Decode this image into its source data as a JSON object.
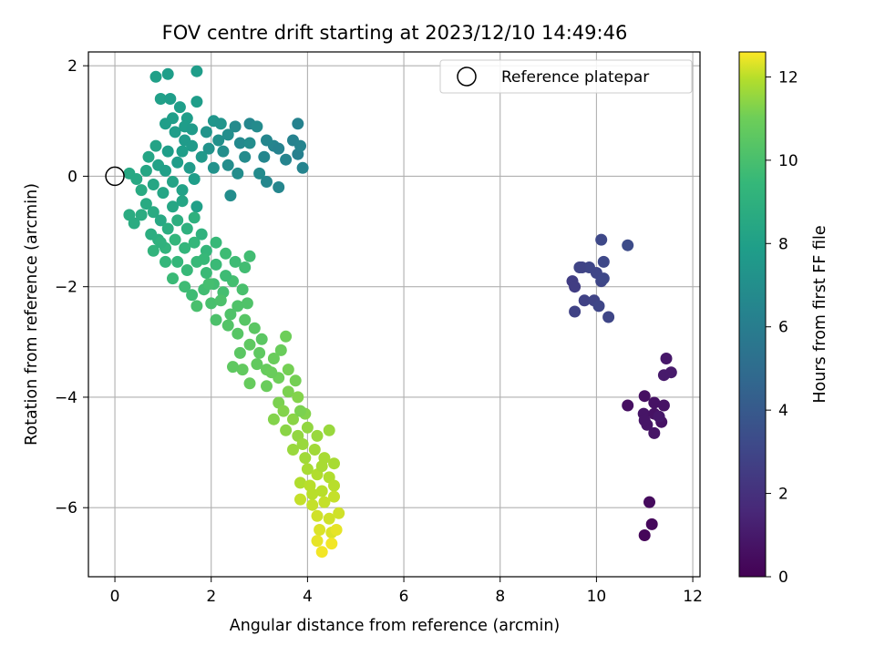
{
  "chart_data": {
    "type": "scatter",
    "title": "FOV centre drift starting at 2023/12/10 14:49:46",
    "xlabel": "Angular distance from reference (arcmin)",
    "ylabel": "Rotation from reference (arcmin)",
    "xlim": [
      -0.55,
      12.15
    ],
    "ylim": [
      -7.25,
      2.25
    ],
    "xticks": [
      0,
      2,
      4,
      6,
      8,
      10,
      12
    ],
    "yticks": [
      -6,
      -4,
      -2,
      0,
      2
    ],
    "grid": true,
    "legend": {
      "position": "top-right",
      "entries": [
        "Reference platepar"
      ]
    },
    "reference_point": {
      "x": 0,
      "y": 0
    },
    "colorbar": {
      "label": "Hours from first FF file",
      "range": [
        0,
        12.6
      ],
      "ticks": [
        0,
        2,
        4,
        6,
        8,
        10,
        12
      ],
      "colormap": "viridis"
    },
    "points": [
      {
        "x": 11.0,
        "y": -6.5,
        "c": 0.2
      },
      {
        "x": 11.15,
        "y": -6.3,
        "c": 0.3
      },
      {
        "x": 11.1,
        "y": -5.9,
        "c": 0.4
      },
      {
        "x": 10.65,
        "y": -4.15,
        "c": 0.6
      },
      {
        "x": 11.0,
        "y": -3.98,
        "c": 0.6
      },
      {
        "x": 11.2,
        "y": -4.1,
        "c": 0.7
      },
      {
        "x": 11.4,
        "y": -4.15,
        "c": 0.7
      },
      {
        "x": 10.98,
        "y": -4.3,
        "c": 0.8
      },
      {
        "x": 11.2,
        "y": -4.3,
        "c": 0.7
      },
      {
        "x": 11.35,
        "y": -4.45,
        "c": 0.7
      },
      {
        "x": 11.05,
        "y": -4.5,
        "c": 0.8
      },
      {
        "x": 11.2,
        "y": -4.65,
        "c": 0.8
      },
      {
        "x": 11.3,
        "y": -4.35,
        "c": 0.9
      },
      {
        "x": 11.45,
        "y": -3.3,
        "c": 0.9
      },
      {
        "x": 11.4,
        "y": -3.6,
        "c": 1.0
      },
      {
        "x": 11.55,
        "y": -3.55,
        "c": 1.0
      },
      {
        "x": 11.0,
        "y": -4.42,
        "c": 0.8
      },
      {
        "x": 9.5,
        "y": -1.9,
        "c": 2.6
      },
      {
        "x": 9.55,
        "y": -2.0,
        "c": 2.6
      },
      {
        "x": 9.55,
        "y": -2.45,
        "c": 2.8
      },
      {
        "x": 9.7,
        "y": -1.65,
        "c": 2.9
      },
      {
        "x": 9.75,
        "y": -2.25,
        "c": 2.8
      },
      {
        "x": 9.85,
        "y": -1.65,
        "c": 3.0
      },
      {
        "x": 9.95,
        "y": -2.25,
        "c": 2.9
      },
      {
        "x": 10.0,
        "y": -1.75,
        "c": 3.0
      },
      {
        "x": 10.1,
        "y": -1.9,
        "c": 3.0
      },
      {
        "x": 10.15,
        "y": -1.55,
        "c": 3.1
      },
      {
        "x": 10.05,
        "y": -2.35,
        "c": 3.0
      },
      {
        "x": 10.25,
        "y": -2.55,
        "c": 3.0
      },
      {
        "x": 10.1,
        "y": -1.15,
        "c": 3.1
      },
      {
        "x": 10.65,
        "y": -1.25,
        "c": 3.3
      },
      {
        "x": 9.65,
        "y": -1.65,
        "c": 2.9
      },
      {
        "x": 10.15,
        "y": -1.85,
        "c": 3.1
      },
      {
        "x": 2.8,
        "y": 0.95,
        "c": 6.6
      },
      {
        "x": 3.1,
        "y": 0.35,
        "c": 6.5
      },
      {
        "x": 3.3,
        "y": 0.55,
        "c": 6.4
      },
      {
        "x": 3.15,
        "y": 0.65,
        "c": 6.5
      },
      {
        "x": 3.4,
        "y": 0.5,
        "c": 6.3
      },
      {
        "x": 3.55,
        "y": 0.3,
        "c": 6.4
      },
      {
        "x": 3.7,
        "y": 0.65,
        "c": 6.3
      },
      {
        "x": 3.8,
        "y": 0.4,
        "c": 6.2
      },
      {
        "x": 3.85,
        "y": 0.55,
        "c": 6.4
      },
      {
        "x": 3.8,
        "y": 0.95,
        "c": 6.3
      },
      {
        "x": 3.9,
        "y": 0.15,
        "c": 6.4
      },
      {
        "x": 3.4,
        "y": -0.2,
        "c": 6.5
      },
      {
        "x": 3.15,
        "y": -0.1,
        "c": 6.6
      },
      {
        "x": 3.0,
        "y": 0.05,
        "c": 6.8
      },
      {
        "x": 2.6,
        "y": 0.6,
        "c": 6.7
      },
      {
        "x": 2.7,
        "y": 0.35,
        "c": 6.8
      },
      {
        "x": 2.5,
        "y": 0.9,
        "c": 6.8
      },
      {
        "x": 2.4,
        "y": -0.35,
        "c": 6.9
      },
      {
        "x": 2.35,
        "y": 0.2,
        "c": 6.9
      },
      {
        "x": 2.55,
        "y": 0.05,
        "c": 6.9
      },
      {
        "x": 2.25,
        "y": 0.45,
        "c": 7.0
      },
      {
        "x": 2.15,
        "y": 0.65,
        "c": 7.1
      },
      {
        "x": 2.05,
        "y": 0.15,
        "c": 7.2
      },
      {
        "x": 1.95,
        "y": 0.5,
        "c": 7.2
      },
      {
        "x": 2.05,
        "y": 1.0,
        "c": 7.4
      },
      {
        "x": 2.2,
        "y": 0.95,
        "c": 7.3
      },
      {
        "x": 1.9,
        "y": 0.8,
        "c": 7.3
      },
      {
        "x": 2.8,
        "y": 0.6,
        "c": 6.9
      },
      {
        "x": 2.95,
        "y": 0.9,
        "c": 6.8
      },
      {
        "x": 2.35,
        "y": 0.75,
        "c": 7.0
      },
      {
        "x": 1.7,
        "y": 1.9,
        "c": 7.8
      },
      {
        "x": 1.1,
        "y": 1.85,
        "c": 7.9
      },
      {
        "x": 0.85,
        "y": 1.8,
        "c": 8.0
      },
      {
        "x": 0.95,
        "y": 1.4,
        "c": 8.0
      },
      {
        "x": 1.15,
        "y": 1.4,
        "c": 7.9
      },
      {
        "x": 1.35,
        "y": 1.25,
        "c": 7.9
      },
      {
        "x": 1.7,
        "y": 1.35,
        "c": 7.8
      },
      {
        "x": 1.5,
        "y": 1.05,
        "c": 7.8
      },
      {
        "x": 1.05,
        "y": 0.95,
        "c": 7.9
      },
      {
        "x": 1.25,
        "y": 0.8,
        "c": 7.8
      },
      {
        "x": 1.45,
        "y": 0.65,
        "c": 7.7
      },
      {
        "x": 1.6,
        "y": 0.55,
        "c": 7.7
      },
      {
        "x": 1.8,
        "y": 0.35,
        "c": 7.6
      },
      {
        "x": 1.1,
        "y": 0.45,
        "c": 7.9
      },
      {
        "x": 1.3,
        "y": 0.25,
        "c": 7.8
      },
      {
        "x": 1.55,
        "y": 0.15,
        "c": 7.7
      },
      {
        "x": 0.9,
        "y": 0.2,
        "c": 8.1
      },
      {
        "x": 1.05,
        "y": 0.1,
        "c": 8.0
      },
      {
        "x": 0.7,
        "y": 0.35,
        "c": 8.3
      },
      {
        "x": 0.3,
        "y": 0.05,
        "c": 8.5
      },
      {
        "x": 0.45,
        "y": -0.05,
        "c": 8.5
      },
      {
        "x": 0.55,
        "y": -0.25,
        "c": 8.6
      },
      {
        "x": 0.65,
        "y": 0.1,
        "c": 8.4
      },
      {
        "x": 0.8,
        "y": -0.15,
        "c": 8.4
      },
      {
        "x": 1.0,
        "y": -0.3,
        "c": 8.3
      },
      {
        "x": 1.2,
        "y": -0.1,
        "c": 8.2
      },
      {
        "x": 1.4,
        "y": -0.25,
        "c": 8.1
      },
      {
        "x": 1.65,
        "y": -0.05,
        "c": 7.9
      },
      {
        "x": 0.85,
        "y": 0.55,
        "c": 8.2
      },
      {
        "x": 1.4,
        "y": 0.45,
        "c": 7.9
      },
      {
        "x": 0.3,
        "y": -0.7,
        "c": 8.7
      },
      {
        "x": 0.4,
        "y": -0.85,
        "c": 8.7
      },
      {
        "x": 0.55,
        "y": -0.7,
        "c": 8.7
      },
      {
        "x": 0.65,
        "y": -0.5,
        "c": 8.6
      },
      {
        "x": 0.8,
        "y": -0.65,
        "c": 8.6
      },
      {
        "x": 0.95,
        "y": -0.8,
        "c": 8.5
      },
      {
        "x": 1.2,
        "y": -0.55,
        "c": 8.4
      },
      {
        "x": 1.4,
        "y": -0.45,
        "c": 8.3
      },
      {
        "x": 1.7,
        "y": -0.55,
        "c": 8.0
      },
      {
        "x": 1.45,
        "y": 0.9,
        "c": 7.8
      },
      {
        "x": 1.2,
        "y": 1.05,
        "c": 7.9
      },
      {
        "x": 1.6,
        "y": 0.85,
        "c": 7.7
      },
      {
        "x": 0.75,
        "y": -1.05,
        "c": 8.8
      },
      {
        "x": 0.9,
        "y": -1.15,
        "c": 8.9
      },
      {
        "x": 1.1,
        "y": -0.95,
        "c": 8.8
      },
      {
        "x": 1.3,
        "y": -0.8,
        "c": 8.9
      },
      {
        "x": 1.5,
        "y": -0.95,
        "c": 9.0
      },
      {
        "x": 1.65,
        "y": -0.75,
        "c": 9.0
      },
      {
        "x": 1.8,
        "y": -1.05,
        "c": 9.1
      },
      {
        "x": 0.8,
        "y": -1.35,
        "c": 9.2
      },
      {
        "x": 1.05,
        "y": -1.3,
        "c": 9.2
      },
      {
        "x": 1.25,
        "y": -1.15,
        "c": 9.3
      },
      {
        "x": 1.45,
        "y": -1.3,
        "c": 9.3
      },
      {
        "x": 1.65,
        "y": -1.2,
        "c": 9.4
      },
      {
        "x": 1.9,
        "y": -1.35,
        "c": 9.4
      },
      {
        "x": 2.1,
        "y": -1.2,
        "c": 9.5
      },
      {
        "x": 1.3,
        "y": -1.55,
        "c": 9.4
      },
      {
        "x": 1.5,
        "y": -1.7,
        "c": 9.5
      },
      {
        "x": 1.7,
        "y": -1.55,
        "c": 9.5
      },
      {
        "x": 1.9,
        "y": -1.75,
        "c": 9.6
      },
      {
        "x": 2.1,
        "y": -1.6,
        "c": 9.6
      },
      {
        "x": 2.3,
        "y": -1.4,
        "c": 9.7
      },
      {
        "x": 2.5,
        "y": -1.55,
        "c": 9.7
      },
      {
        "x": 2.8,
        "y": -1.45,
        "c": 9.8
      },
      {
        "x": 2.7,
        "y": -1.65,
        "c": 9.8
      },
      {
        "x": 1.45,
        "y": -2.0,
        "c": 9.7
      },
      {
        "x": 1.6,
        "y": -2.15,
        "c": 9.7
      },
      {
        "x": 1.85,
        "y": -2.05,
        "c": 9.8
      },
      {
        "x": 2.05,
        "y": -1.95,
        "c": 9.8
      },
      {
        "x": 2.25,
        "y": -2.1,
        "c": 9.9
      },
      {
        "x": 2.45,
        "y": -1.9,
        "c": 9.9
      },
      {
        "x": 2.65,
        "y": -2.05,
        "c": 10.0
      },
      {
        "x": 1.7,
        "y": -2.35,
        "c": 10.0
      },
      {
        "x": 2.0,
        "y": -2.3,
        "c": 10.0
      },
      {
        "x": 2.2,
        "y": -2.25,
        "c": 10.1
      },
      {
        "x": 2.4,
        "y": -2.5,
        "c": 10.2
      },
      {
        "x": 2.55,
        "y": -2.35,
        "c": 10.2
      },
      {
        "x": 2.75,
        "y": -2.3,
        "c": 10.2
      },
      {
        "x": 2.35,
        "y": -2.7,
        "c": 10.3
      },
      {
        "x": 2.55,
        "y": -2.85,
        "c": 10.4
      },
      {
        "x": 2.7,
        "y": -2.6,
        "c": 10.4
      },
      {
        "x": 2.9,
        "y": -2.75,
        "c": 10.5
      },
      {
        "x": 2.6,
        "y": -3.2,
        "c": 10.5
      },
      {
        "x": 2.8,
        "y": -3.05,
        "c": 10.6
      },
      {
        "x": 3.0,
        "y": -3.2,
        "c": 10.6
      },
      {
        "x": 2.65,
        "y": -3.5,
        "c": 10.7
      },
      {
        "x": 2.95,
        "y": -3.4,
        "c": 10.7
      },
      {
        "x": 3.15,
        "y": -3.5,
        "c": 10.8
      },
      {
        "x": 2.8,
        "y": -3.75,
        "c": 10.8
      },
      {
        "x": 3.3,
        "y": -3.3,
        "c": 10.9
      },
      {
        "x": 3.45,
        "y": -3.15,
        "c": 10.9
      },
      {
        "x": 3.55,
        "y": -2.9,
        "c": 11.0
      },
      {
        "x": 3.4,
        "y": -3.65,
        "c": 11.0
      },
      {
        "x": 3.6,
        "y": -3.5,
        "c": 11.1
      },
      {
        "x": 3.75,
        "y": -3.7,
        "c": 11.1
      },
      {
        "x": 3.6,
        "y": -3.9,
        "c": 11.2
      },
      {
        "x": 3.4,
        "y": -4.1,
        "c": 11.2
      },
      {
        "x": 3.8,
        "y": -4.0,
        "c": 11.3
      },
      {
        "x": 3.95,
        "y": -4.3,
        "c": 11.3
      },
      {
        "x": 3.7,
        "y": -4.4,
        "c": 11.4
      },
      {
        "x": 3.55,
        "y": -4.6,
        "c": 11.4
      },
      {
        "x": 3.8,
        "y": -4.7,
        "c": 11.5
      },
      {
        "x": 4.0,
        "y": -4.55,
        "c": 11.5
      },
      {
        "x": 4.2,
        "y": -4.7,
        "c": 11.6
      },
      {
        "x": 4.45,
        "y": -4.6,
        "c": 11.6
      },
      {
        "x": 3.7,
        "y": -4.95,
        "c": 11.6
      },
      {
        "x": 3.95,
        "y": -5.1,
        "c": 11.7
      },
      {
        "x": 4.15,
        "y": -4.95,
        "c": 11.7
      },
      {
        "x": 4.35,
        "y": -5.1,
        "c": 11.8
      },
      {
        "x": 4.55,
        "y": -5.2,
        "c": 11.8
      },
      {
        "x": 4.0,
        "y": -5.3,
        "c": 11.8
      },
      {
        "x": 4.2,
        "y": -5.4,
        "c": 11.9
      },
      {
        "x": 4.45,
        "y": -5.45,
        "c": 11.9
      },
      {
        "x": 3.85,
        "y": -5.55,
        "c": 11.9
      },
      {
        "x": 4.05,
        "y": -5.6,
        "c": 12.0
      },
      {
        "x": 4.3,
        "y": -5.7,
        "c": 12.0
      },
      {
        "x": 4.55,
        "y": -5.6,
        "c": 12.0
      },
      {
        "x": 3.85,
        "y": -5.85,
        "c": 12.1
      },
      {
        "x": 4.1,
        "y": -5.95,
        "c": 12.1
      },
      {
        "x": 4.35,
        "y": -5.9,
        "c": 12.1
      },
      {
        "x": 4.55,
        "y": -5.8,
        "c": 12.1
      },
      {
        "x": 4.2,
        "y": -6.15,
        "c": 12.2
      },
      {
        "x": 4.45,
        "y": -6.2,
        "c": 12.2
      },
      {
        "x": 4.65,
        "y": -6.1,
        "c": 12.2
      },
      {
        "x": 4.25,
        "y": -6.4,
        "c": 12.3
      },
      {
        "x": 4.5,
        "y": -6.45,
        "c": 12.3
      },
      {
        "x": 4.2,
        "y": -6.6,
        "c": 12.4
      },
      {
        "x": 4.3,
        "y": -6.8,
        "c": 12.5
      },
      {
        "x": 4.5,
        "y": -6.65,
        "c": 12.5
      },
      {
        "x": 4.6,
        "y": -6.4,
        "c": 12.4
      },
      {
        "x": 4.1,
        "y": -5.75,
        "c": 12.0
      },
      {
        "x": 3.9,
        "y": -4.85,
        "c": 11.6
      },
      {
        "x": 3.3,
        "y": -4.4,
        "c": 11.3
      },
      {
        "x": 3.5,
        "y": -4.25,
        "c": 11.3
      },
      {
        "x": 2.45,
        "y": -3.45,
        "c": 10.6
      },
      {
        "x": 3.15,
        "y": -3.8,
        "c": 10.9
      },
      {
        "x": 2.1,
        "y": -2.6,
        "c": 10.1
      },
      {
        "x": 1.95,
        "y": -1.95,
        "c": 9.9
      },
      {
        "x": 1.2,
        "y": -1.85,
        "c": 9.6
      },
      {
        "x": 1.05,
        "y": -1.55,
        "c": 9.4
      },
      {
        "x": 0.95,
        "y": -1.2,
        "c": 9.1
      },
      {
        "x": 1.85,
        "y": -1.5,
        "c": 9.5
      },
      {
        "x": 2.3,
        "y": -1.8,
        "c": 9.7
      },
      {
        "x": 3.05,
        "y": -2.95,
        "c": 10.5
      },
      {
        "x": 3.25,
        "y": -3.55,
        "c": 10.9
      },
      {
        "x": 3.85,
        "y": -4.25,
        "c": 11.2
      },
      {
        "x": 4.3,
        "y": -5.25,
        "c": 11.8
      }
    ]
  }
}
